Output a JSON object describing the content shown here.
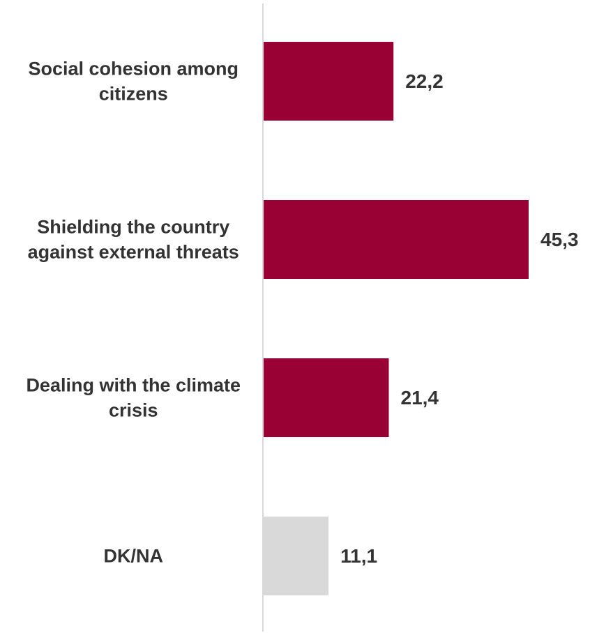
{
  "chart_data": {
    "type": "bar",
    "orientation": "horizontal",
    "categories": [
      [
        "Social cohesion among",
        "citizens"
      ],
      [
        "Shielding the country",
        "against external threats"
      ],
      [
        "Dealing with the climate",
        "crisis"
      ],
      [
        "DK/NA"
      ]
    ],
    "values": [
      22.2,
      45.3,
      21.4,
      11.1
    ],
    "value_labels": [
      "22,2",
      "45,3",
      "21,4",
      "11,1"
    ],
    "bar_colors": [
      "#990033",
      "#990033",
      "#990033",
      "#d9d9d9"
    ],
    "title": "",
    "xlabel": "",
    "ylabel": "",
    "grid": false
  }
}
